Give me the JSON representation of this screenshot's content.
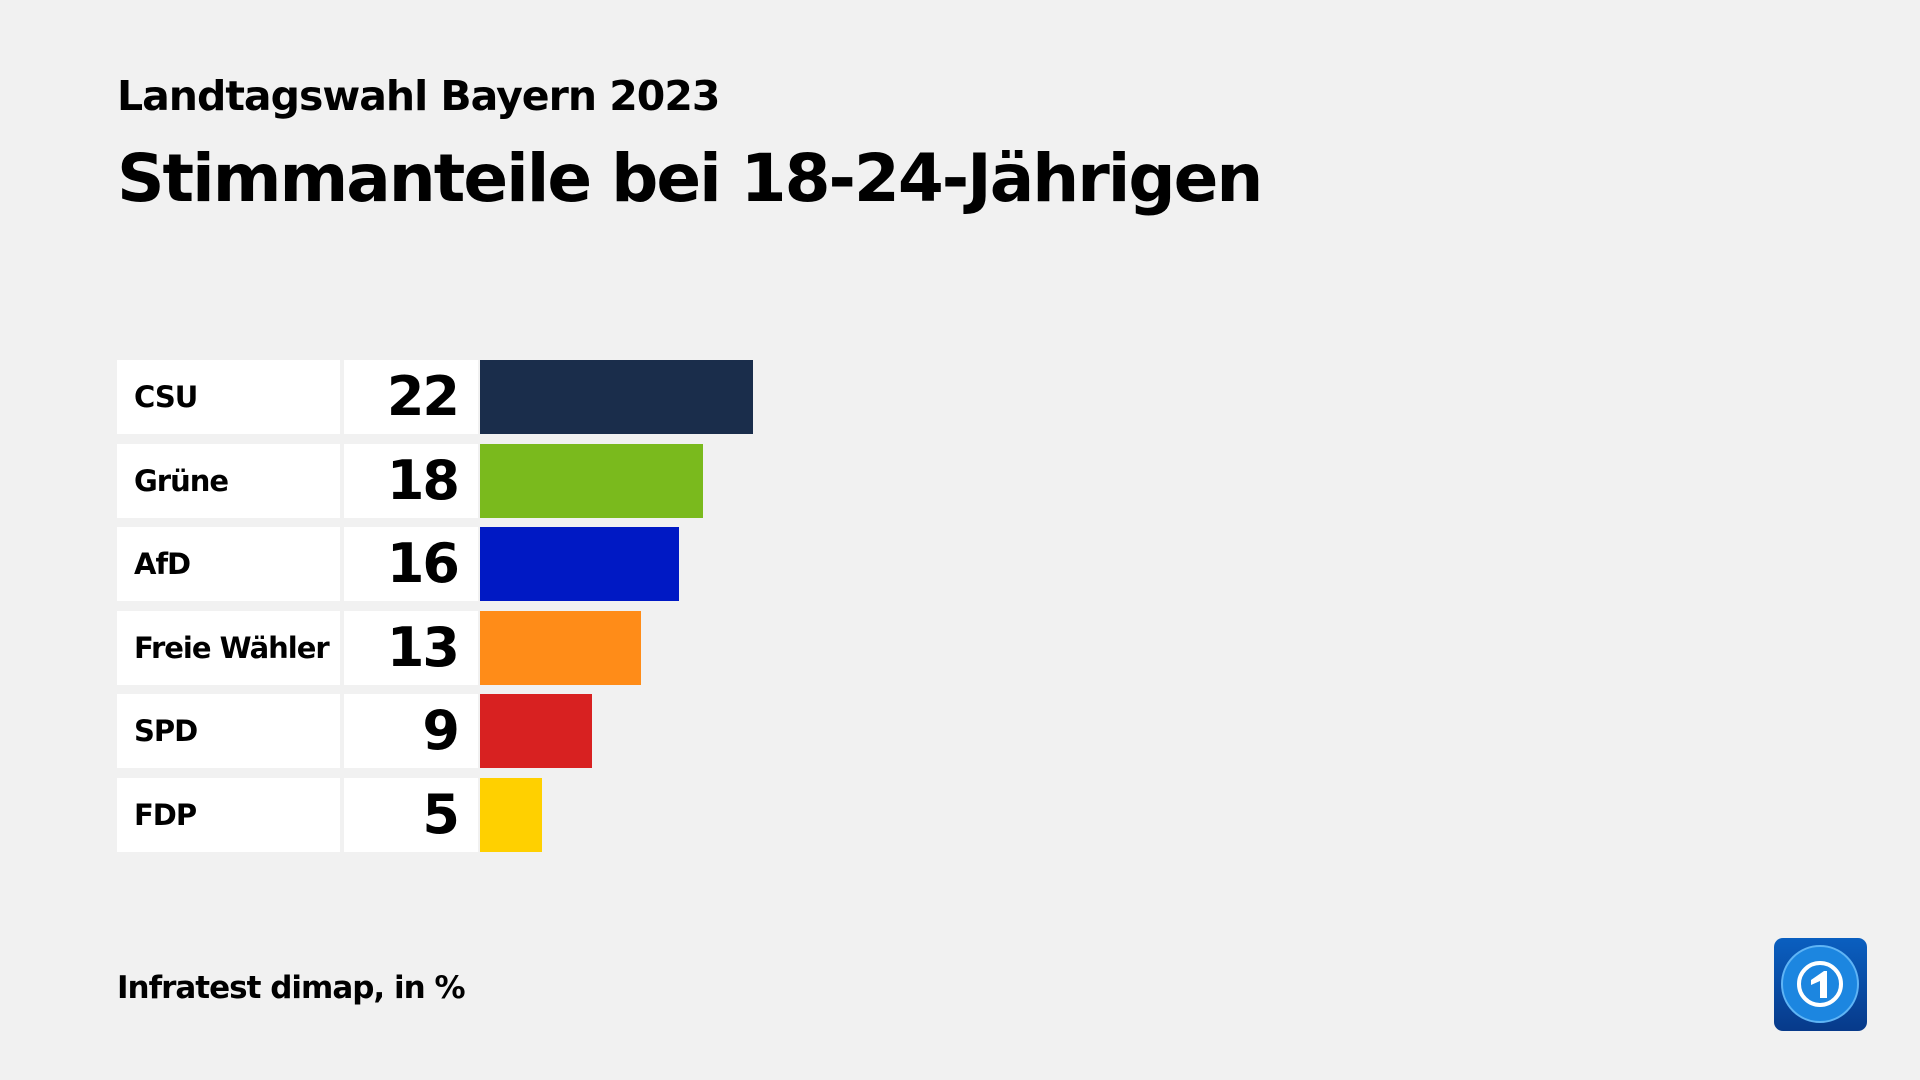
{
  "subtitle": "Landtagswahl Bayern 2023",
  "title": "Stimmanteile bei 18-24-Jährigen",
  "footer": "Infratest dimap, in %",
  "logo_icon": "tagesschau-logo",
  "chart_data": {
    "type": "bar",
    "orientation": "horizontal",
    "title": "Stimmanteile bei 18-24-Jährigen",
    "unit": "%",
    "categories": [
      "CSU",
      "Grüne",
      "AfD",
      "Freie Wähler",
      "SPD",
      "FDP"
    ],
    "values": [
      22,
      18,
      16,
      13,
      9,
      5
    ],
    "colors": [
      "#1a2d4b",
      "#7aba1d",
      "#0019c4",
      "#ff8c18",
      "#d82121",
      "#ffd000"
    ],
    "grid": false
  }
}
